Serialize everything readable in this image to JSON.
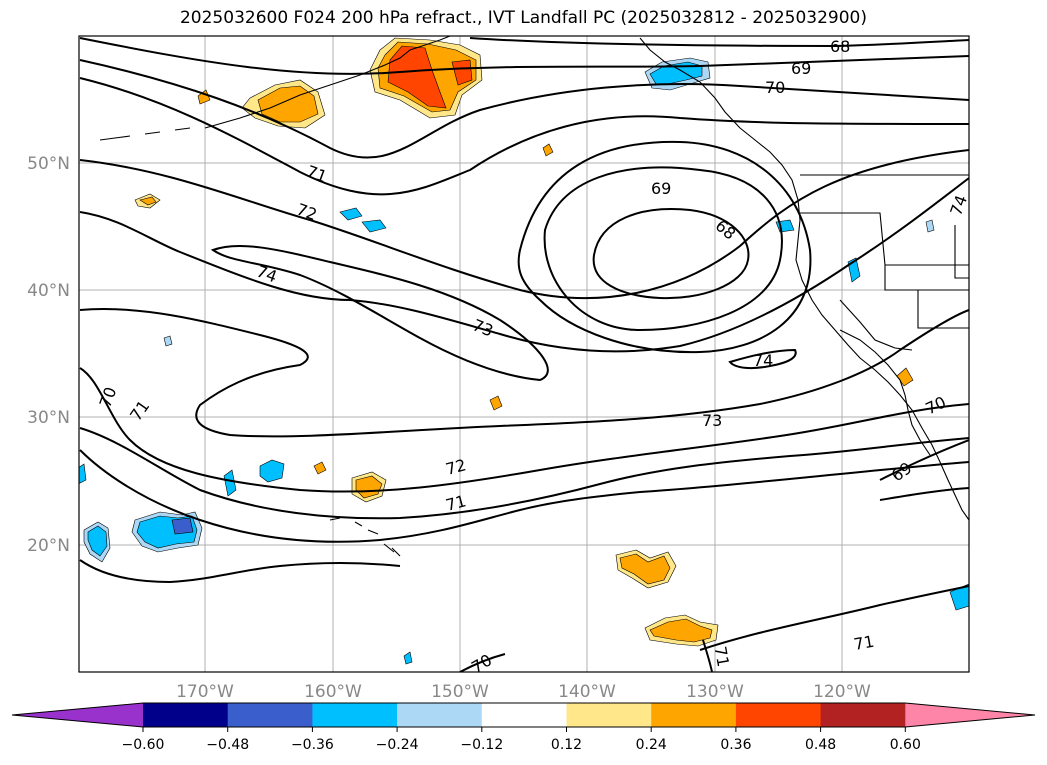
{
  "title": "2025032600 F024 200 hPa refract., IVT Landfall PC (2025032812 - 2025032900)",
  "lat_ticks": [
    "50°N",
    "40°N",
    "30°N",
    "20°N"
  ],
  "lon_ticks": [
    "170°W",
    "160°W",
    "150°W",
    "140°W",
    "130°W",
    "120°W"
  ],
  "contour_labels": [
    "68",
    "69",
    "70",
    "71",
    "72",
    "73",
    "74"
  ],
  "colorbar": {
    "colors": [
      "#9932cc",
      "#00008b",
      "#3a5fcd",
      "#00bfff",
      "#add8f5",
      "#ffffff",
      "#ffe78a",
      "#ffa500",
      "#ff4500",
      "#b22222",
      "#ff85a8"
    ],
    "ticks": [
      "−0.60",
      "−0.48",
      "−0.36",
      "−0.24",
      "−0.12",
      "0.12",
      "0.24",
      "0.36",
      "0.48",
      "0.60"
    ]
  },
  "map": {
    "region": "North Pacific and western North America",
    "field_contoured": "200 hPa refractivity",
    "field_shaded": "IVT Landfall PC"
  }
}
